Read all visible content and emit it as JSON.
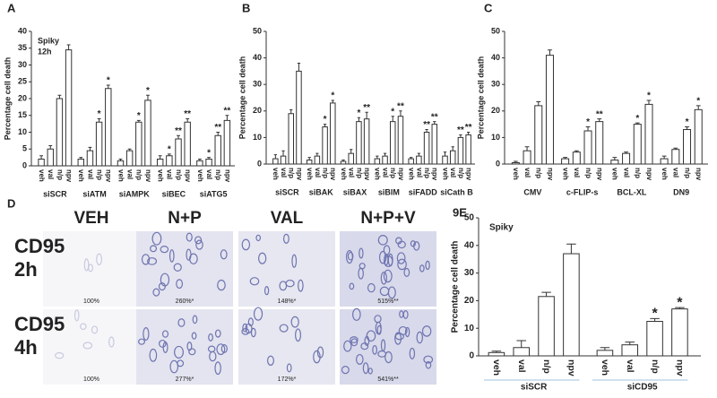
{
  "chart_data": [
    {
      "type": "grouped_bar",
      "panel": "A",
      "annotation": [
        "Spiky",
        "12h"
      ],
      "y_label": "Percentage cell death",
      "categories": [
        "siSCR",
        "siATM",
        "siAMPK",
        "siBEC",
        "siATG5"
      ],
      "subcategories": [
        "veh",
        "val",
        "n/p",
        "npv"
      ],
      "values": [
        [
          2,
          5,
          20,
          34.5
        ],
        [
          2,
          4.5,
          13,
          23
        ],
        [
          1.5,
          4.5,
          13,
          19.5
        ],
        [
          2,
          3,
          8,
          13
        ],
        [
          1.5,
          2,
          9,
          13.5
        ]
      ],
      "errors": [
        [
          1,
          1,
          1,
          1.5
        ],
        [
          0.5,
          1,
          1,
          1
        ],
        [
          0.5,
          0.5,
          0.5,
          1.5
        ],
        [
          1,
          0.5,
          1,
          1
        ],
        [
          0.5,
          0.5,
          1,
          1.5
        ]
      ],
      "significance": [
        [
          null,
          null,
          null,
          null
        ],
        [
          null,
          null,
          "*",
          "*"
        ],
        [
          null,
          null,
          "*",
          "*"
        ],
        [
          null,
          "*",
          "**",
          "**"
        ],
        [
          null,
          "*",
          "**",
          "**"
        ]
      ],
      "color": "#ffffff",
      "ylim": [
        0,
        40
      ],
      "yticks": [
        0,
        5,
        10,
        15,
        20,
        25,
        30,
        35,
        40
      ]
    },
    {
      "type": "grouped_bar",
      "panel": "B",
      "y_label": "Percentage cell death",
      "categories": [
        "siSCR",
        "siBAK",
        "siBAX",
        "siBIM",
        "siFADD",
        "siCath B"
      ],
      "subcategories": [
        "veh",
        "val",
        "n/p",
        "npv"
      ],
      "values": [
        [
          2,
          3,
          19,
          35
        ],
        [
          1.5,
          3,
          14,
          23
        ],
        [
          1,
          4,
          16,
          17
        ],
        [
          2,
          3,
          16,
          18
        ],
        [
          2,
          3,
          12,
          15
        ],
        [
          3,
          5,
          10,
          11
        ]
      ],
      "errors": [
        [
          1.5,
          2,
          1.5,
          3
        ],
        [
          1,
          1,
          1,
          1
        ],
        [
          0.5,
          1.5,
          1.5,
          2.5
        ],
        [
          1,
          1,
          2,
          2
        ],
        [
          0.5,
          1,
          1,
          1
        ],
        [
          1.5,
          1.5,
          1,
          1
        ]
      ],
      "significance": [
        [
          null,
          null,
          null,
          null
        ],
        [
          null,
          null,
          "*",
          "*"
        ],
        [
          null,
          null,
          "*",
          "**"
        ],
        [
          null,
          null,
          "*",
          "**"
        ],
        [
          null,
          null,
          "**",
          "**"
        ],
        [
          null,
          null,
          "**",
          "**"
        ]
      ],
      "color": "#ffffff",
      "ylim": [
        0,
        50
      ],
      "yticks": [
        0,
        10,
        20,
        30,
        40,
        50
      ]
    },
    {
      "type": "grouped_bar",
      "panel": "C",
      "y_label": "Percentage cell death",
      "categories": [
        "CMV",
        "c-FLIP-s",
        "BCL-XL",
        "DN9"
      ],
      "subcategories": [
        "veh",
        "val",
        "n/p",
        "npv"
      ],
      "values": [
        [
          0.5,
          5,
          22,
          41
        ],
        [
          2,
          4.5,
          12.5,
          16
        ],
        [
          1.5,
          4,
          15,
          22.5
        ],
        [
          2,
          5.5,
          13,
          20.5
        ]
      ],
      "errors": [
        [
          0.5,
          1.5,
          1.5,
          2
        ],
        [
          0.5,
          0.5,
          1.5,
          1
        ],
        [
          1,
          0.5,
          0.5,
          1.5
        ],
        [
          1,
          0.5,
          1,
          1.5
        ]
      ],
      "significance": [
        [
          null,
          null,
          null,
          null
        ],
        [
          null,
          null,
          "*",
          "**"
        ],
        [
          null,
          null,
          "*",
          "*"
        ],
        [
          null,
          null,
          "*",
          "*"
        ]
      ],
      "color": "#ffffff",
      "ylim": [
        0,
        50
      ],
      "yticks": [
        0,
        10,
        20,
        30,
        40,
        50
      ]
    },
    {
      "type": "grouped_bar",
      "panel": "9E",
      "annotation": [
        "Spiky"
      ],
      "y_label": "Percentage cell death",
      "categories": [
        "siSCR",
        "siCD95"
      ],
      "subcategories": [
        "veh",
        "val",
        "n/p",
        "npv"
      ],
      "values": [
        [
          1.2,
          3,
          21.5,
          37
        ],
        [
          2,
          4,
          12.5,
          17
        ]
      ],
      "errors": [
        [
          0.5,
          2.5,
          1.5,
          3.5
        ],
        [
          1,
          1,
          1,
          0.5
        ]
      ],
      "significance": [
        [
          null,
          null,
          null,
          null
        ],
        [
          null,
          null,
          "*",
          "*"
        ]
      ],
      "color": "#ffffff",
      "ylim": [
        0,
        50
      ],
      "yticks": [
        0,
        10,
        20,
        30,
        40,
        50
      ]
    }
  ],
  "image_panel": {
    "panel": "D",
    "columns": [
      "VEH",
      "N+P",
      "VAL",
      "N+P+V"
    ],
    "rows": [
      {
        "label": [
          "CD95",
          "2h"
        ],
        "captions": [
          "100%",
          "260%*",
          "148%*",
          "515%**"
        ]
      },
      {
        "label": [
          "CD95",
          "4h"
        ],
        "captions": [
          "100%",
          "277%*",
          "172%*",
          "541%**"
        ]
      }
    ]
  }
}
